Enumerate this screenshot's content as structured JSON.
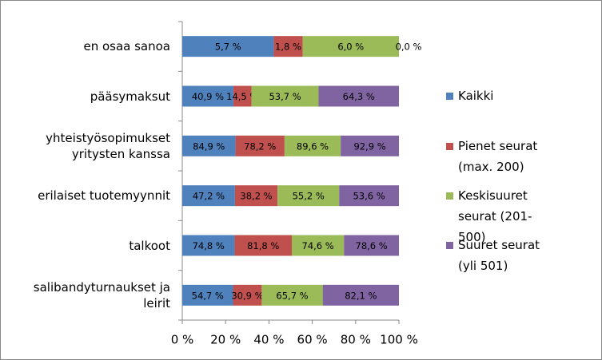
{
  "chart_data": {
    "type": "bar",
    "orientation": "horizontal",
    "stacking": "percent",
    "categories": [
      "en osaa sanoa",
      "pääsymaksut",
      "yhteistyösopimukset yritysten kanssa",
      "erilaiset tuotemyynnit",
      "talkoot",
      "salibandyturnaukset ja leirit"
    ],
    "series": [
      {
        "name": "Kaikki",
        "color": "#4f81bd",
        "values": [
          5.7,
          40.9,
          84.9,
          47.2,
          74.8,
          54.7
        ],
        "value_labels": [
          "5,7 %",
          "40,9 %",
          "84,9 %",
          "47,2 %",
          "74,8 %",
          "54,7 %"
        ]
      },
      {
        "name": "Pienet seurat (max. 200)",
        "color": "#c0504d",
        "values": [
          1.8,
          14.5,
          78.2,
          38.2,
          81.8,
          30.9
        ],
        "value_labels": [
          "1,8 %",
          "14,5 %",
          "78,2 %",
          "38,2 %",
          "81,8 %",
          "30,9 %"
        ]
      },
      {
        "name": "Keskisuuret seurat (201-500)",
        "color": "#9bbb59",
        "values": [
          6.0,
          53.7,
          89.6,
          55.2,
          74.6,
          65.7
        ],
        "value_labels": [
          "6,0 %",
          "53,7 %",
          "89,6 %",
          "55,2 %",
          "74,6 %",
          "65,7 %"
        ]
      },
      {
        "name": "Suuret seurat (yli 501)",
        "color": "#8064a2",
        "values": [
          0.0,
          64.3,
          92.9,
          53.6,
          78.6,
          82.1
        ],
        "value_labels": [
          "0,0 %",
          "64,3 %",
          "92,9 %",
          "53,6 %",
          "78,6 %",
          "82,1 %"
        ]
      }
    ],
    "xlim": [
      0,
      100
    ],
    "xticks": [
      {
        "value": 0,
        "label": "0 %"
      },
      {
        "value": 20,
        "label": "20 %"
      },
      {
        "value": 40,
        "label": "40 %"
      },
      {
        "value": 60,
        "label": "60 %"
      },
      {
        "value": 80,
        "label": "80 %"
      },
      {
        "value": 100,
        "label": "100 %"
      }
    ],
    "grid": false,
    "legend": "right"
  }
}
